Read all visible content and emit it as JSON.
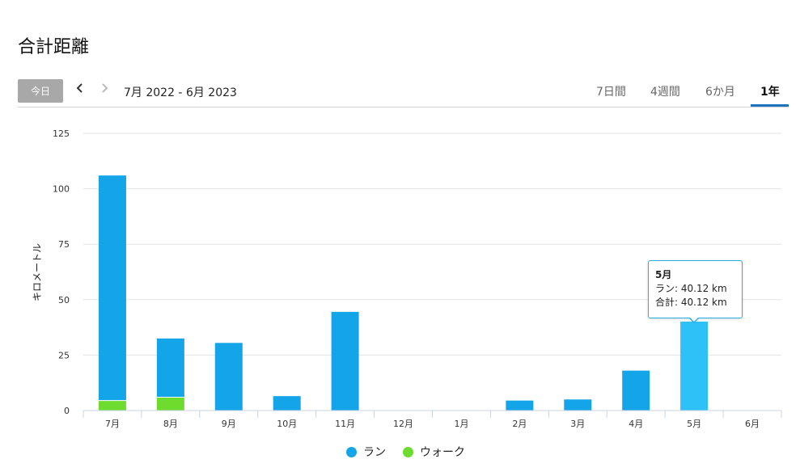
{
  "title": "合計距離",
  "toolbar": {
    "today_label": "今日",
    "prev_icon": "chevron-left-icon",
    "next_icon": "chevron-right-icon",
    "range_label": "7月 2022 - 6月 2023",
    "tabs": [
      {
        "label": "7日間",
        "active": false
      },
      {
        "label": "4週間",
        "active": false
      },
      {
        "label": "6か月",
        "active": false
      },
      {
        "label": "1年",
        "active": true
      }
    ]
  },
  "colors": {
    "run": "#14a5e8",
    "walk": "#6edc2e",
    "highlight": "#2ec1f7",
    "tab_accent": "#1e73be"
  },
  "chart_data": {
    "type": "bar",
    "stacked": true,
    "ylabel": "キロメートル",
    "ylim": [
      0,
      125
    ],
    "yticks": [
      0,
      25,
      50,
      75,
      100,
      125
    ],
    "categories": [
      "7月",
      "8月",
      "9月",
      "10月",
      "11月",
      "12月",
      "1月",
      "2月",
      "3月",
      "4月",
      "5月",
      "6月"
    ],
    "series": [
      {
        "name": "ウォーク",
        "values": [
          4.5,
          6,
          0,
          0,
          0,
          0,
          0,
          0,
          0,
          0,
          0,
          0
        ]
      },
      {
        "name": "ラン",
        "values": [
          101.5,
          26.5,
          30.5,
          6.5,
          44.5,
          0,
          0,
          4.5,
          5,
          18,
          40.12,
          0
        ]
      }
    ],
    "grid": true,
    "legend_position": "bottom",
    "highlighted_index": 10,
    "tooltip": {
      "title": "5月",
      "lines": [
        "ラン: 40.12 km",
        "合計: 40.12 km"
      ]
    }
  }
}
